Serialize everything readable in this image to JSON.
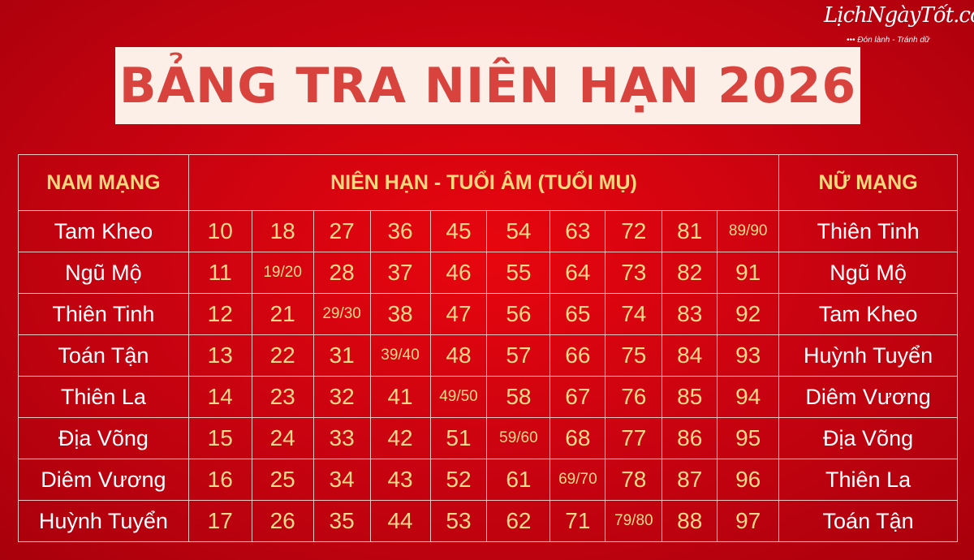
{
  "logo": {
    "brand": "LịchNgàyTốt.com",
    "tagline": "••• Đón lành - Tránh dữ"
  },
  "title": "BẢNG TRA NIÊN HẠN 2026",
  "colors": {
    "background": "#d00410",
    "title_box": "#fbefe8",
    "title_text": "#d8443d",
    "header_text": "#ffd77e",
    "number_text": "#ffd98a"
  },
  "table": {
    "headers": [
      "NAM MẠNG",
      "NIÊN HẠN - TUỔI ÂM (TUỔI MỤ)",
      "NỮ MẠNG"
    ],
    "rows": [
      {
        "nam": "Tam Kheo",
        "ages": [
          "10",
          "18",
          "27",
          "36",
          "45",
          "54",
          "63",
          "72",
          "81",
          "89/90"
        ],
        "nu": "Thiên Tinh"
      },
      {
        "nam": "Ngũ Mộ",
        "ages": [
          "11",
          "19/20",
          "28",
          "37",
          "46",
          "55",
          "64",
          "73",
          "82",
          "91"
        ],
        "nu": "Ngũ Mộ"
      },
      {
        "nam": "Thiên Tinh",
        "ages": [
          "12",
          "21",
          "29/30",
          "38",
          "47",
          "56",
          "65",
          "74",
          "83",
          "92"
        ],
        "nu": "Tam Kheo"
      },
      {
        "nam": "Toán Tận",
        "ages": [
          "13",
          "22",
          "31",
          "39/40",
          "48",
          "57",
          "66",
          "75",
          "84",
          "93"
        ],
        "nu": "Huỳnh Tuyển"
      },
      {
        "nam": "Thiên La",
        "ages": [
          "14",
          "23",
          "32",
          "41",
          "49/50",
          "58",
          "67",
          "76",
          "85",
          "94"
        ],
        "nu": "Diêm Vương"
      },
      {
        "nam": "Địa Võng",
        "ages": [
          "15",
          "24",
          "33",
          "42",
          "51",
          "59/60",
          "68",
          "77",
          "86",
          "95"
        ],
        "nu": "Địa Võng"
      },
      {
        "nam": "Diêm Vương",
        "ages": [
          "16",
          "25",
          "34",
          "43",
          "52",
          "61",
          "69/70",
          "78",
          "87",
          "96"
        ],
        "nu": "Thiên La"
      },
      {
        "nam": "Huỳnh Tuyển",
        "ages": [
          "17",
          "26",
          "35",
          "44",
          "53",
          "62",
          "71",
          "79/80",
          "88",
          "97"
        ],
        "nu": "Toán Tận"
      }
    ]
  }
}
